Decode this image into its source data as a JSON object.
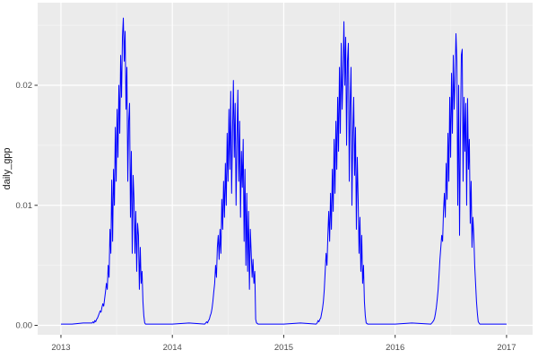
{
  "figure": {
    "y_axis_title": "daily_gpp"
  },
  "style": {
    "outer_bg": "#ffffff",
    "panel_bg": "#ebebeb",
    "grid_major": "#ffffff",
    "grid_minor": "#f5f5f5",
    "line_color": "#0000ff",
    "tick_mark_color": "#333333",
    "tick_label_color": "#4d4d4d",
    "axis_title_color": "#1a1a1a"
  },
  "chart_data": {
    "type": "line",
    "title": "",
    "xlabel": "",
    "ylabel": "daily_gpp",
    "legend_position": "none",
    "grid": "major+minor",
    "xlim": [
      2012.791,
      2017.234
    ],
    "ylim": [
      -0.000785,
      0.02688
    ],
    "x_ticks": [
      {
        "value": 2013,
        "label": "2013"
      },
      {
        "value": 2014,
        "label": "2014"
      },
      {
        "value": 2015,
        "label": "2015"
      },
      {
        "value": 2016,
        "label": "2016"
      },
      {
        "value": 2017,
        "label": "2017"
      }
    ],
    "y_ticks": [
      {
        "value": 0.0,
        "label": "0.00"
      },
      {
        "value": 0.01,
        "label": "0.01"
      },
      {
        "value": 0.02,
        "label": "0.02"
      }
    ],
    "x_minor_ticks": [
      2013.5,
      2014.5,
      2015.5,
      2016.5
    ],
    "y_minor_ticks": [
      0.005,
      0.015,
      0.025
    ],
    "series": [
      {
        "name": "daily_gpp",
        "color": "#0000ff",
        "points": [
          [
            2013.0,
            0.0001
          ],
          [
            2013.1,
            0.0001
          ],
          [
            2013.2,
            0.0002
          ],
          [
            2013.26,
            0.0002
          ],
          [
            2013.28,
            0.0002
          ],
          [
            2013.288,
            0.0003
          ],
          [
            2013.296,
            0.0002
          ],
          [
            2013.304,
            0.0004
          ],
          [
            2013.312,
            0.0003
          ],
          [
            2013.32,
            0.0005
          ],
          [
            2013.328,
            0.0006
          ],
          [
            2013.336,
            0.0008
          ],
          [
            2013.344,
            0.001
          ],
          [
            2013.352,
            0.0012
          ],
          [
            2013.36,
            0.0011
          ],
          [
            2013.368,
            0.0015
          ],
          [
            2013.376,
            0.0018
          ],
          [
            2013.384,
            0.0016
          ],
          [
            2013.392,
            0.0022
          ],
          [
            2013.4,
            0.0028
          ],
          [
            2013.408,
            0.0035
          ],
          [
            2013.416,
            0.003
          ],
          [
            2013.424,
            0.005
          ],
          [
            2013.432,
            0.004
          ],
          [
            2013.44,
            0.008
          ],
          [
            2013.448,
            0.006
          ],
          [
            2013.456,
            0.0121
          ],
          [
            2013.464,
            0.007
          ],
          [
            2013.472,
            0.013
          ],
          [
            2013.48,
            0.01
          ],
          [
            2013.488,
            0.0165
          ],
          [
            2013.496,
            0.012
          ],
          [
            2013.504,
            0.018
          ],
          [
            2013.512,
            0.014
          ],
          [
            2013.52,
            0.02
          ],
          [
            2013.528,
            0.016
          ],
          [
            2013.536,
            0.0225
          ],
          [
            2013.544,
            0.019
          ],
          [
            2013.552,
            0.024
          ],
          [
            2013.56,
            0.0256
          ],
          [
            2013.568,
            0.022
          ],
          [
            2013.576,
            0.0245
          ],
          [
            2013.584,
            0.018
          ],
          [
            2013.592,
            0.0215
          ],
          [
            2013.6,
            0.012
          ],
          [
            2013.608,
            0.017
          ],
          [
            2013.616,
            0.0185
          ],
          [
            2013.624,
            0.009
          ],
          [
            2013.632,
            0.0145
          ],
          [
            2013.64,
            0.006
          ],
          [
            2013.648,
            0.0125
          ],
          [
            2013.656,
            0.0105
          ],
          [
            2013.664,
            0.006
          ],
          [
            2013.672,
            0.0095
          ],
          [
            2013.68,
            0.0045
          ],
          [
            2013.688,
            0.0085
          ],
          [
            2013.696,
            0.0075
          ],
          [
            2013.704,
            0.003
          ],
          [
            2013.712,
            0.0065
          ],
          [
            2013.72,
            0.0035
          ],
          [
            2013.728,
            0.0045
          ],
          [
            2013.736,
            0.002
          ],
          [
            2013.744,
            0.0008
          ],
          [
            2013.752,
            0.0002
          ],
          [
            2013.76,
            0.0001
          ],
          [
            2013.9,
            0.0001
          ],
          [
            2014.0,
            0.0001
          ],
          [
            2014.15,
            0.0002
          ],
          [
            2014.29,
            0.0001
          ],
          [
            2014.3,
            0.0002
          ],
          [
            2014.308,
            0.0003
          ],
          [
            2014.316,
            0.0002
          ],
          [
            2014.324,
            0.0004
          ],
          [
            2014.332,
            0.0005
          ],
          [
            2014.34,
            0.0008
          ],
          [
            2014.348,
            0.001
          ],
          [
            2014.356,
            0.0014
          ],
          [
            2014.364,
            0.002
          ],
          [
            2014.372,
            0.0028
          ],
          [
            2014.38,
            0.0035
          ],
          [
            2014.388,
            0.005
          ],
          [
            2014.396,
            0.004
          ],
          [
            2014.404,
            0.0065
          ],
          [
            2014.412,
            0.0075
          ],
          [
            2014.42,
            0.0055
          ],
          [
            2014.428,
            0.008
          ],
          [
            2014.436,
            0.006
          ],
          [
            2014.444,
            0.0105
          ],
          [
            2014.452,
            0.008
          ],
          [
            2014.46,
            0.012
          ],
          [
            2014.468,
            0.009
          ],
          [
            2014.476,
            0.0135
          ],
          [
            2014.484,
            0.01
          ],
          [
            2014.492,
            0.016
          ],
          [
            2014.5,
            0.012
          ],
          [
            2014.508,
            0.018
          ],
          [
            2014.516,
            0.013
          ],
          [
            2014.524,
            0.0195
          ],
          [
            2014.532,
            0.011
          ],
          [
            2014.54,
            0.016
          ],
          [
            2014.548,
            0.0204
          ],
          [
            2014.556,
            0.014
          ],
          [
            2014.564,
            0.0185
          ],
          [
            2014.572,
            0.01
          ],
          [
            2014.58,
            0.0155
          ],
          [
            2014.588,
            0.0196
          ],
          [
            2014.596,
            0.012
          ],
          [
            2014.604,
            0.017
          ],
          [
            2014.612,
            0.009
          ],
          [
            2014.62,
            0.0145
          ],
          [
            2014.628,
            0.0115
          ],
          [
            2014.636,
            0.0155
          ],
          [
            2014.644,
            0.007
          ],
          [
            2014.652,
            0.013
          ],
          [
            2014.66,
            0.005
          ],
          [
            2014.668,
            0.011
          ],
          [
            2014.676,
            0.0045
          ],
          [
            2014.684,
            0.0095
          ],
          [
            2014.692,
            0.003
          ],
          [
            2014.7,
            0.008
          ],
          [
            2014.708,
            0.006
          ],
          [
            2014.716,
            0.004
          ],
          [
            2014.724,
            0.0055
          ],
          [
            2014.732,
            0.0035
          ],
          [
            2014.74,
            0.0045
          ],
          [
            2014.748,
            0.0005
          ],
          [
            2014.756,
            0.0002
          ],
          [
            2014.77,
            0.0001
          ],
          [
            2014.9,
            0.0001
          ],
          [
            2015.0,
            0.0001
          ],
          [
            2015.15,
            0.0002
          ],
          [
            2015.29,
            0.0001
          ],
          [
            2015.3,
            0.0002
          ],
          [
            2015.308,
            0.0004
          ],
          [
            2015.316,
            0.0003
          ],
          [
            2015.324,
            0.0005
          ],
          [
            2015.332,
            0.0006
          ],
          [
            2015.34,
            0.001
          ],
          [
            2015.348,
            0.0014
          ],
          [
            2015.356,
            0.002
          ],
          [
            2015.364,
            0.003
          ],
          [
            2015.372,
            0.0045
          ],
          [
            2015.38,
            0.006
          ],
          [
            2015.388,
            0.005
          ],
          [
            2015.396,
            0.0075
          ],
          [
            2015.404,
            0.0095
          ],
          [
            2015.412,
            0.007
          ],
          [
            2015.42,
            0.011
          ],
          [
            2015.428,
            0.008
          ],
          [
            2015.436,
            0.013
          ],
          [
            2015.444,
            0.0095
          ],
          [
            2015.452,
            0.0155
          ],
          [
            2015.46,
            0.011
          ],
          [
            2015.468,
            0.017
          ],
          [
            2015.476,
            0.013
          ],
          [
            2015.484,
            0.019
          ],
          [
            2015.492,
            0.0145
          ],
          [
            2015.5,
            0.0215
          ],
          [
            2015.508,
            0.016
          ],
          [
            2015.516,
            0.0235
          ],
          [
            2015.524,
            0.018
          ],
          [
            2015.532,
            0.021
          ],
          [
            2015.54,
            0.0253
          ],
          [
            2015.548,
            0.02
          ],
          [
            2015.556,
            0.024
          ],
          [
            2015.564,
            0.015
          ],
          [
            2015.572,
            0.022
          ],
          [
            2015.58,
            0.0235
          ],
          [
            2015.588,
            0.012
          ],
          [
            2015.596,
            0.0185
          ],
          [
            2015.604,
            0.0215
          ],
          [
            2015.612,
            0.01
          ],
          [
            2015.62,
            0.016
          ],
          [
            2015.628,
            0.019
          ],
          [
            2015.636,
            0.0125
          ],
          [
            2015.644,
            0.0165
          ],
          [
            2015.652,
            0.008
          ],
          [
            2015.66,
            0.014
          ],
          [
            2015.668,
            0.0105
          ],
          [
            2015.676,
            0.006
          ],
          [
            2015.684,
            0.009
          ],
          [
            2015.692,
            0.0045
          ],
          [
            2015.7,
            0.0075
          ],
          [
            2015.708,
            0.0035
          ],
          [
            2015.716,
            0.005
          ],
          [
            2015.724,
            0.002
          ],
          [
            2015.732,
            0.0008
          ],
          [
            2015.74,
            0.0002
          ],
          [
            2015.755,
            0.0001
          ],
          [
            2015.9,
            0.0001
          ],
          [
            2016.0,
            0.0001
          ],
          [
            2016.15,
            0.0002
          ],
          [
            2016.32,
            0.0001
          ],
          [
            2016.33,
            0.0002
          ],
          [
            2016.338,
            0.0003
          ],
          [
            2016.346,
            0.0004
          ],
          [
            2016.354,
            0.0006
          ],
          [
            2016.362,
            0.001
          ],
          [
            2016.37,
            0.0015
          ],
          [
            2016.378,
            0.0022
          ],
          [
            2016.386,
            0.003
          ],
          [
            2016.394,
            0.0042
          ],
          [
            2016.402,
            0.0055
          ],
          [
            2016.41,
            0.0065
          ],
          [
            2016.418,
            0.0075
          ],
          [
            2016.426,
            0.007
          ],
          [
            2016.434,
            0.0095
          ],
          [
            2016.442,
            0.011
          ],
          [
            2016.45,
            0.009
          ],
          [
            2016.458,
            0.0135
          ],
          [
            2016.466,
            0.0105
          ],
          [
            2016.474,
            0.016
          ],
          [
            2016.482,
            0.012
          ],
          [
            2016.49,
            0.019
          ],
          [
            2016.498,
            0.014
          ],
          [
            2016.506,
            0.021
          ],
          [
            2016.514,
            0.016
          ],
          [
            2016.522,
            0.0225
          ],
          [
            2016.53,
            0.018
          ],
          [
            2016.538,
            0.0205
          ],
          [
            2016.546,
            0.0243
          ],
          [
            2016.554,
            0.022
          ],
          [
            2016.562,
            0.01
          ],
          [
            2016.57,
            0.02
          ],
          [
            2016.578,
            0.0075
          ],
          [
            2016.586,
            0.016
          ],
          [
            2016.594,
            0.0225
          ],
          [
            2016.602,
            0.023
          ],
          [
            2016.61,
            0.012
          ],
          [
            2016.618,
            0.019
          ],
          [
            2016.626,
            0.0145
          ],
          [
            2016.634,
            0.0185
          ],
          [
            2016.642,
            0.01
          ],
          [
            2016.65,
            0.0189
          ],
          [
            2016.658,
            0.013
          ],
          [
            2016.666,
            0.0155
          ],
          [
            2016.674,
            0.0085
          ],
          [
            2016.682,
            0.012
          ],
          [
            2016.69,
            0.0065
          ],
          [
            2016.698,
            0.009
          ],
          [
            2016.706,
            0.0075
          ],
          [
            2016.714,
            0.005
          ],
          [
            2016.722,
            0.0035
          ],
          [
            2016.73,
            0.002
          ],
          [
            2016.738,
            0.001
          ],
          [
            2016.746,
            0.0003
          ],
          [
            2016.76,
            0.0001
          ],
          [
            2016.9,
            0.0001
          ],
          [
            2017.0,
            0.0001
          ]
        ]
      }
    ]
  }
}
